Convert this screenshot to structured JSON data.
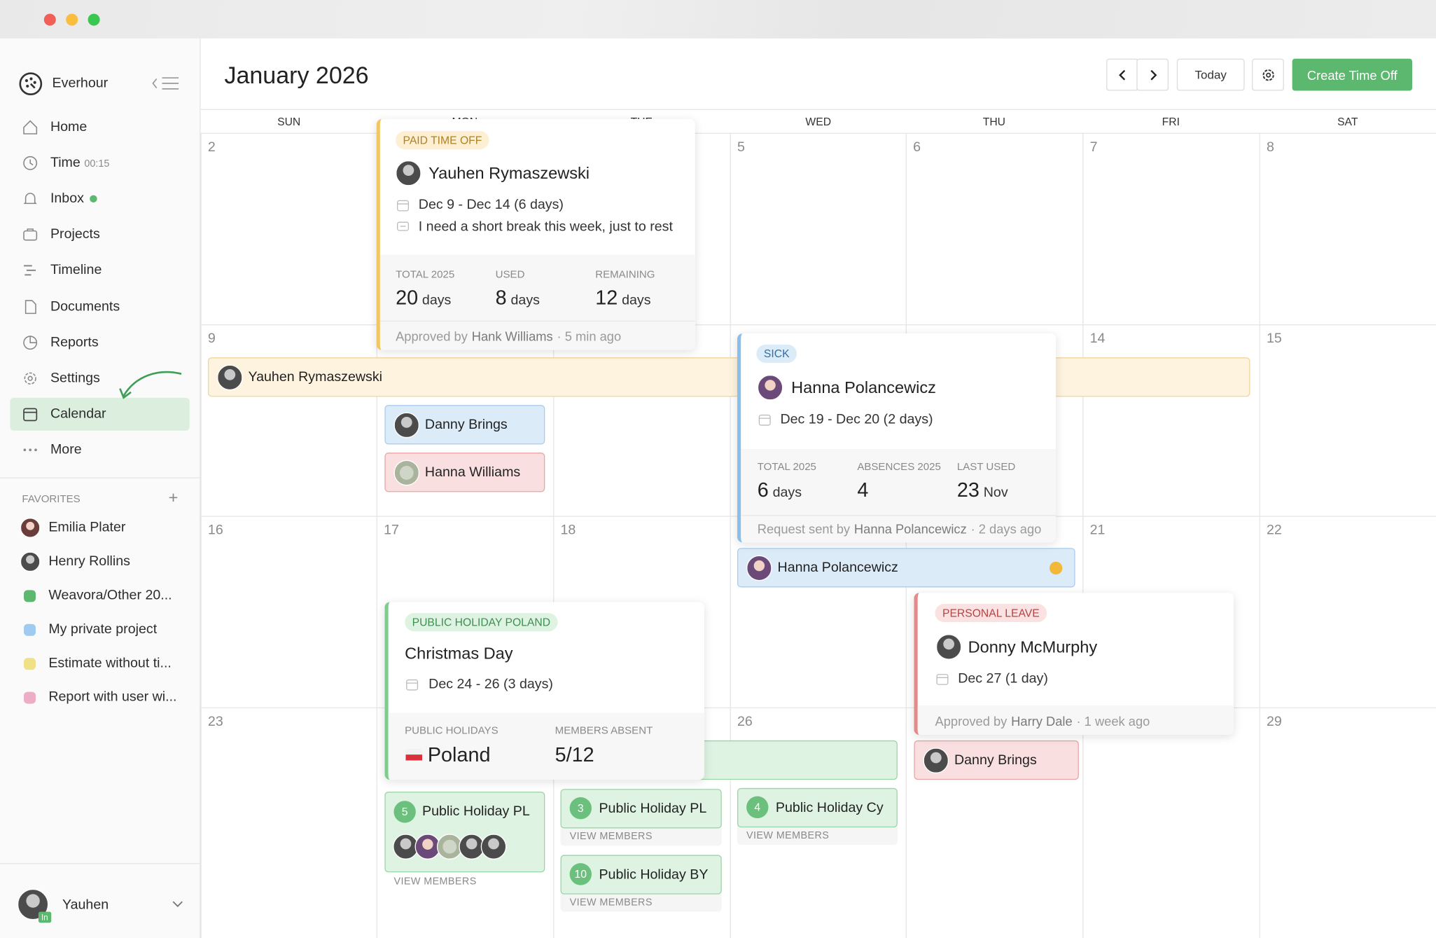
{
  "sidebar": {
    "brand": "Everhour",
    "nav": [
      {
        "label": "Home"
      },
      {
        "label": "Time",
        "badge": "00:15"
      },
      {
        "label": "Inbox"
      },
      {
        "label": "Projects"
      },
      {
        "label": "Timeline"
      },
      {
        "label": "Documents"
      },
      {
        "label": "Reports"
      },
      {
        "label": "Settings"
      },
      {
        "label": "Calendar"
      },
      {
        "label": "More"
      }
    ],
    "favorites_title": "FAVORITES",
    "favorites": [
      "Emilia Plater",
      "Henry Rollins",
      "Weavora/Other 20...",
      "My private project",
      "Estimate without ti...",
      "Report with user wi..."
    ],
    "user": "Yauhen",
    "user_badge": "In"
  },
  "header": {
    "title": "January 2026",
    "today": "Today",
    "create": "Create Time Off"
  },
  "calendar": {
    "weekdays": [
      "SUN",
      "MON",
      "TUE",
      "WED",
      "THU",
      "FRI",
      "SAT"
    ],
    "weeks": [
      [
        "2",
        null,
        null,
        "5",
        "6",
        "7",
        "8"
      ],
      [
        "9",
        null,
        null,
        null,
        null,
        "14",
        "15"
      ],
      [
        "16",
        "17",
        "18",
        null,
        null,
        "21",
        "22"
      ],
      [
        "23",
        null,
        null,
        "26",
        null,
        null,
        "29"
      ]
    ]
  },
  "events": {
    "yauhen_bar": "Yauhen Rymaszewski",
    "danny_blue": "Danny Brings",
    "hanna_williams": "Hanna Williams",
    "hanna_pol": "Hanna Polancewicz",
    "danny_red": "Danny Brings",
    "holiday_pl_1": {
      "count": "5",
      "label": "Public Holiday PL",
      "link": "VIEW MEMBERS"
    },
    "holiday_pl_2": {
      "count": "3",
      "label": "Public Holiday PL",
      "link": "VIEW MEMBERS"
    },
    "holiday_by": {
      "count": "10",
      "label": "Public Holiday BY",
      "link": "VIEW MEMBERS"
    },
    "holiday_cy": {
      "count": "4",
      "label": "Public Holiday Cy",
      "link": "VIEW MEMBERS"
    }
  },
  "cards": {
    "paid": {
      "tag": "PAID TIME OFF",
      "name": "Yauhen Rymaszewski",
      "dates": "Dec 9 - Dec 14 (6 days)",
      "note": "I need a short break this week, just to rest",
      "stats": [
        {
          "label": "TOTAL 2025",
          "value": "20",
          "unit": "days"
        },
        {
          "label": "USED",
          "value": "8",
          "unit": "days"
        },
        {
          "label": "REMAINING",
          "value": "12",
          "unit": "days"
        }
      ],
      "footer": {
        "prefix": "Approved by",
        "who": "Hank Williams",
        "when": "· 5 min ago"
      }
    },
    "sick": {
      "tag": "SICK",
      "name": "Hanna Polancewicz",
      "dates": "Dec 19 - Dec 20 (2 days)",
      "stats": [
        {
          "label": "TOTAL 2025",
          "value": "6",
          "unit": "days"
        },
        {
          "label": "ABSENCES 2025",
          "value": "4"
        },
        {
          "label": "LAST USED",
          "value": "23",
          "unit": "Nov"
        }
      ],
      "footer": {
        "prefix": "Request sent by",
        "who": "Hanna Polancewicz",
        "when": "· 2 days ago"
      }
    },
    "holiday": {
      "tag": "PUBLIC HOLIDAY POLAND",
      "name": "Christmas Day",
      "dates": "Dec 24 - 26 (3 days)",
      "stats": [
        {
          "label": "PUBLIC HOLIDAYS",
          "value": "Poland"
        },
        {
          "label": "MEMBERS ABSENT",
          "value": "5/12"
        }
      ]
    },
    "personal": {
      "tag": "PERSONAL LEAVE",
      "name": "Donny McMurphy",
      "dates": "Dec 27 (1 day)",
      "footer": {
        "prefix": "Approved by",
        "who": "Harry Dale",
        "when": "· 1 week ago"
      }
    }
  }
}
